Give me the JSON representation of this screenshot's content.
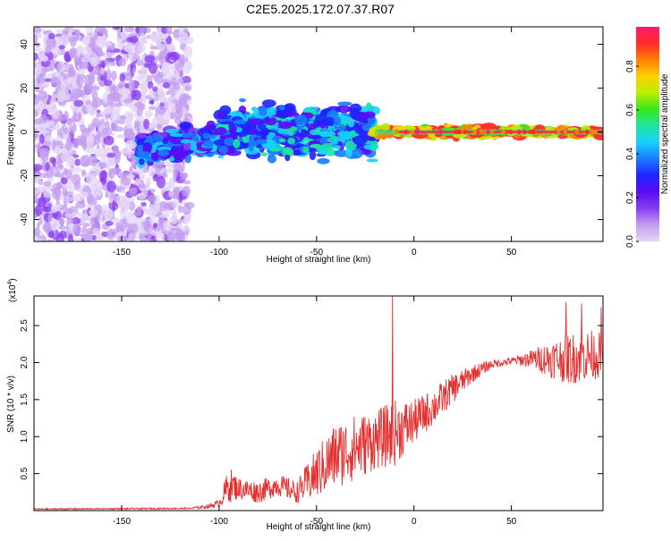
{
  "title": "C2E5.2025.172.07.37.R07",
  "colors": {
    "axis": "#000000",
    "snr_line": "#e53030",
    "colormap": [
      "#e4d6f7",
      "#c39ef0",
      "#8a3df0",
      "#5a0cf2",
      "#1f24ff",
      "#1a7bff",
      "#18d0ff",
      "#1ce6a0",
      "#38e61c",
      "#b8f000",
      "#ffd000",
      "#ff8000",
      "#ff2a2a",
      "#ff1a6a"
    ]
  },
  "chart_data": [
    {
      "id": "spectrogram",
      "type": "heatmap",
      "xlabel": "Height of straight line (km)",
      "ylabel": "Frequency (Hz)",
      "xlim": [
        -195,
        97
      ],
      "ylim": [
        -50,
        48
      ],
      "x_ticks": [
        -150,
        -100,
        -50,
        0,
        50
      ],
      "y_ticks": [
        -40,
        -20,
        0,
        20,
        40
      ],
      "colorbar": {
        "label": "Normalized spectral amplitude",
        "range": [
          0.0,
          0.98
        ],
        "ticks": [
          0.0,
          0.2,
          0.4,
          0.6,
          0.8
        ]
      },
      "regions": [
        {
          "x_range": [
            -195,
            -115
          ],
          "freq_range": [
            -50,
            48
          ],
          "amplitude": [
            0.02,
            0.15
          ]
        },
        {
          "x_range": [
            -140,
            -100
          ],
          "freq_center": -8,
          "freq_width": 6,
          "amplitude": [
            0.15,
            0.45
          ]
        },
        {
          "x_range": [
            -100,
            -20
          ],
          "freq_center": 0,
          "freq_width": 10,
          "amplitude": [
            0.2,
            0.55
          ]
        },
        {
          "x_range": [
            -20,
            97
          ],
          "freq_center": 0,
          "freq_width": 2,
          "amplitude": [
            0.6,
            0.95
          ]
        }
      ]
    },
    {
      "id": "snr",
      "type": "line",
      "xlabel": "Height of straight line (km)",
      "ylabel": "SNR (10 * v/v)",
      "y_multiplier": "(x10",
      "y_multiplier_exp": "4",
      "y_multiplier_close": ")",
      "xlim": [
        -195,
        97
      ],
      "ylim": [
        0,
        2.9
      ],
      "x_ticks": [
        -150,
        -100,
        -50,
        0,
        50
      ],
      "y_ticks": [
        0.5,
        1.0,
        1.5,
        2.0,
        2.5
      ],
      "y_tick_labels": [
        "0.5",
        "1.0",
        "1.5",
        "2.0",
        "2.5"
      ],
      "envelope": [
        {
          "x": -195,
          "mean": 0.02,
          "noise": 0.01
        },
        {
          "x": -115,
          "mean": 0.03,
          "noise": 0.01
        },
        {
          "x": -105,
          "mean": 0.06,
          "noise": 0.03
        },
        {
          "x": -100,
          "mean": 0.1,
          "noise": 0.05
        },
        {
          "x": -95,
          "mean": 0.35,
          "noise": 0.25
        },
        {
          "x": -90,
          "mean": 0.3,
          "noise": 0.15
        },
        {
          "x": -80,
          "mean": 0.25,
          "noise": 0.15
        },
        {
          "x": -70,
          "mean": 0.35,
          "noise": 0.15
        },
        {
          "x": -60,
          "mean": 0.25,
          "noise": 0.15
        },
        {
          "x": -50,
          "mean": 0.5,
          "noise": 0.35
        },
        {
          "x": -40,
          "mean": 0.75,
          "noise": 0.45
        },
        {
          "x": -30,
          "mean": 0.85,
          "noise": 0.45
        },
        {
          "x": -20,
          "mean": 0.95,
          "noise": 0.4
        },
        {
          "x": -10,
          "mean": 1.05,
          "noise": 0.45
        },
        {
          "x": 0,
          "mean": 1.2,
          "noise": 0.3
        },
        {
          "x": 10,
          "mean": 1.4,
          "noise": 0.25
        },
        {
          "x": 20,
          "mean": 1.65,
          "noise": 0.2
        },
        {
          "x": 30,
          "mean": 1.85,
          "noise": 0.12
        },
        {
          "x": 40,
          "mean": 1.98,
          "noise": 0.06
        },
        {
          "x": 50,
          "mean": 2.02,
          "noise": 0.05
        },
        {
          "x": 60,
          "mean": 2.05,
          "noise": 0.12
        },
        {
          "x": 70,
          "mean": 2.05,
          "noise": 0.25
        },
        {
          "x": 80,
          "mean": 2.05,
          "noise": 0.35
        },
        {
          "x": 90,
          "mean": 2.1,
          "noise": 0.35
        },
        {
          "x": 97,
          "mean": 2.1,
          "noise": 0.3
        }
      ],
      "spikes": [
        {
          "x": -11,
          "y": 2.9
        },
        {
          "x": 78,
          "y": 2.82
        },
        {
          "x": 86,
          "y": 2.8
        },
        {
          "x": 96,
          "y": 2.75
        }
      ]
    }
  ]
}
